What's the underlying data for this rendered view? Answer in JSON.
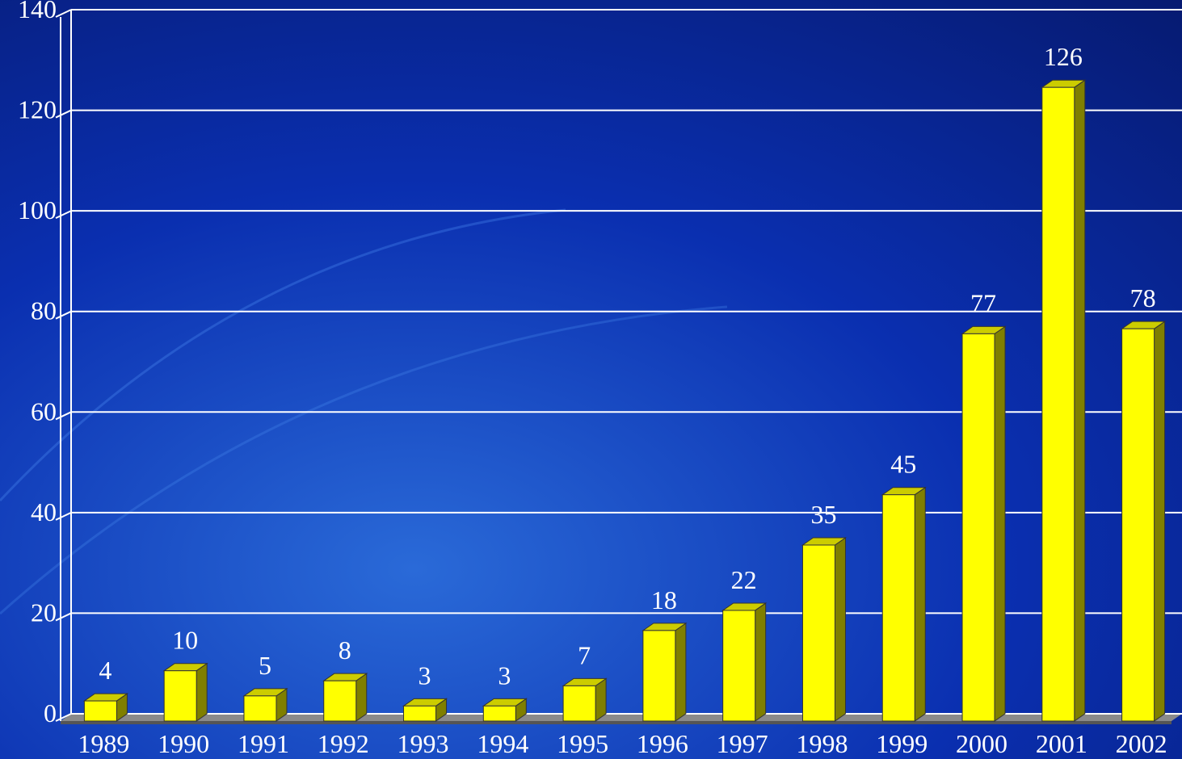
{
  "chart_data": {
    "type": "bar",
    "categories": [
      "1989",
      "1990",
      "1991",
      "1992",
      "1993",
      "1994",
      "1995",
      "1996",
      "1997",
      "1998",
      "1999",
      "2000",
      "2001",
      "2002"
    ],
    "values": [
      4,
      10,
      5,
      8,
      3,
      3,
      7,
      18,
      22,
      35,
      45,
      77,
      126,
      78
    ],
    "color": "#ffff00",
    "ylim": [
      0,
      140
    ],
    "yticks": [
      0,
      20,
      40,
      60,
      80,
      100,
      120,
      140
    ],
    "grid": true
  }
}
